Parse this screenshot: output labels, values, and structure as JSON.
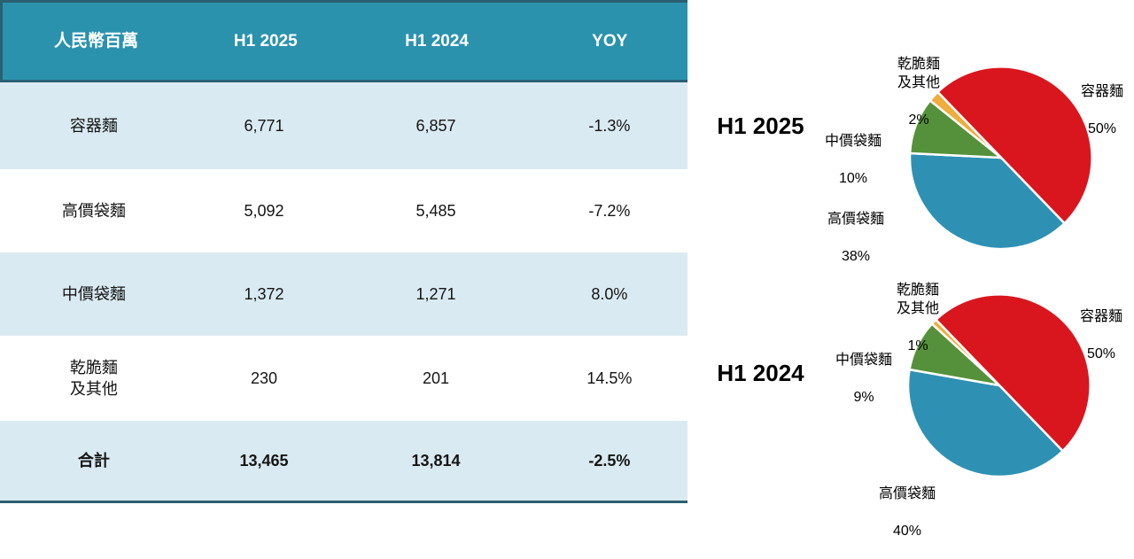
{
  "chart_data": [
    {
      "type": "table",
      "title": "",
      "columns": [
        "人民幣百萬",
        "H1 2025",
        "H1 2024",
        "YOY"
      ],
      "rows": [
        [
          "容器麵",
          "6,771",
          "6,857",
          "-1.3%"
        ],
        [
          "高價袋麵",
          "5,092",
          "5,485",
          "-7.2%"
        ],
        [
          "中價袋麵",
          "1,372",
          "1,271",
          "8.0%"
        ],
        [
          "乾脆麵\n及其他",
          "230",
          "201",
          "14.5%"
        ],
        [
          "合計",
          "13,465",
          "13,814",
          "-2.5%"
        ]
      ]
    },
    {
      "type": "pie",
      "title": "H1 2025",
      "labels": [
        "容器麵",
        "高價袋麵",
        "中價袋麵",
        "乾脆麵\n及其他"
      ],
      "values": [
        50,
        38,
        10,
        2
      ],
      "value_labels": [
        "50%",
        "38%",
        "10%",
        "2%"
      ],
      "colors": [
        "#D9161E",
        "#2E91B3",
        "#55913A",
        "#EFAD3E"
      ],
      "start_angle_deg": 316,
      "labels_position": "outside"
    },
    {
      "type": "pie",
      "title": "H1 2024",
      "labels": [
        "容器麵",
        "高價袋麵",
        "中價袋麵",
        "乾脆麵\n及其他"
      ],
      "values": [
        50,
        40,
        9,
        1
      ],
      "value_labels": [
        "50%",
        "40%",
        "9%",
        "1%"
      ],
      "colors": [
        "#D9161E",
        "#2E91B3",
        "#55913A",
        "#EFAD3E"
      ],
      "start_angle_deg": 316,
      "labels_position": "outside"
    }
  ],
  "colors": {
    "header_bg": "#2B92AE",
    "row_alt_bg": "#DAEAF2",
    "table_border": "#2A6072",
    "pie_red": "#D9161E",
    "pie_blue": "#2E91B3",
    "pie_green": "#55913A",
    "pie_orange": "#EFAD3E"
  }
}
